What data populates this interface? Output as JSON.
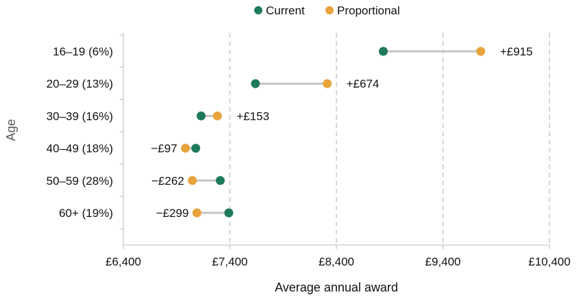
{
  "chart_data": {
    "type": "dumbbell",
    "xlabel": "Average annual award",
    "ylabel": "Age",
    "xlim": [
      6400,
      10400
    ],
    "x_ticks": [
      6400,
      7400,
      8400,
      9400,
      10400
    ],
    "x_tick_labels": [
      "£6,400",
      "£7,400",
      "£8,400",
      "£9,400",
      "£10,400"
    ],
    "grid": "vertical dashed",
    "legend_position": "top-center",
    "categories": [
      "16–19 (6%)",
      "20–29 (13%)",
      "30–39 (16%)",
      "40–49 (18%)",
      "50–59 (28%)",
      "60+ (19%)"
    ],
    "series": [
      {
        "name": "Current",
        "color": "#1f7a5c",
        "values": [
          8840,
          7640,
          7130,
          7080,
          7310,
          7390
        ]
      },
      {
        "name": "Proportional",
        "color": "#e8a33c",
        "values": [
          9755,
          8314,
          7283,
          6983,
          7048,
          7091
        ]
      }
    ],
    "difference_labels": [
      "+£915",
      "+£674",
      "+£153",
      "−£97",
      "−£262",
      "−£299"
    ]
  }
}
